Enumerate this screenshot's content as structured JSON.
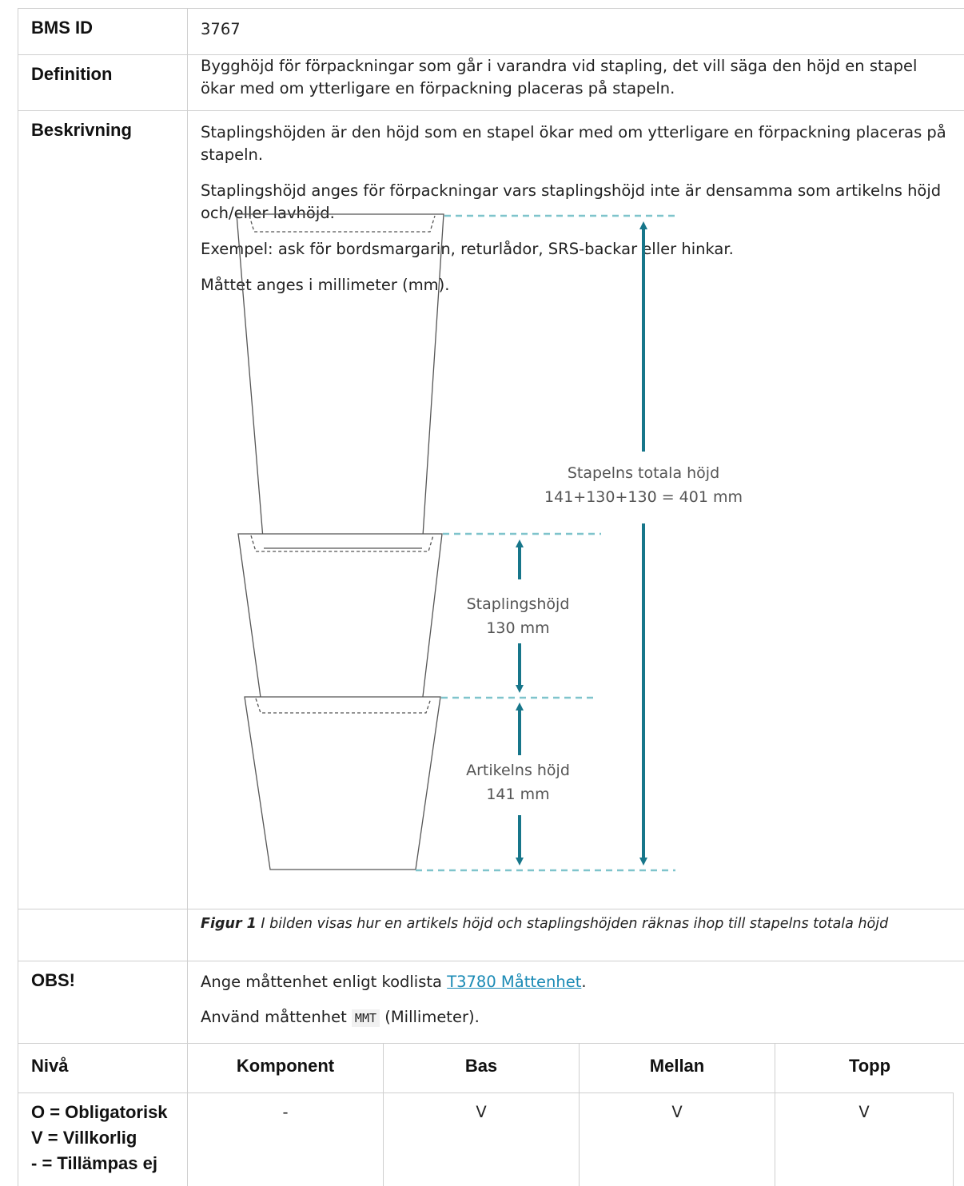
{
  "bms_id": {
    "label": "BMS ID",
    "value": "3767"
  },
  "definition": {
    "label": "Definition",
    "text": "Bygghöjd för förpackningar som går i varandra vid stapling, det vill säga den höjd en stapel ökar med om ytterligare en förpackning placeras på stapeln."
  },
  "description": {
    "label": "Beskrivning",
    "paragraphs": [
      "Staplingshöjden är den höjd som en stapel ökar med om ytterligare en förpackning placeras på stapeln.",
      "Staplingshöjd anges för förpackningar vars staplingshöjd inte är densamma som artikelns höjd och/eller lavhöjd.",
      "Exempel: ask för bordsmargarin, returlådor, SRS-backar eller hinkar.",
      "Måttet anges i millimeter (mm)."
    ]
  },
  "figure": {
    "total_label": "Stapelns totala höjd",
    "total_formula": "141+130+130 = 401 mm",
    "stacking_label": "Staplingshöjd",
    "stacking_value": "130 mm",
    "article_label": "Artikelns höjd",
    "article_value": "141 mm",
    "caption_prefix": "Figur 1",
    "caption_text": " I bilden visas hur en artikels höjd och staplingshöjden räknas ihop till stapelns totala höjd"
  },
  "obs": {
    "label": "OBS!",
    "line1_before": "Ange måttenhet enligt kodlista ",
    "line1_link": "T3780 Måttenhet",
    "line1_after": ".",
    "line2_before": "Använd måttenhet ",
    "line2_code": "MMT",
    "line2_after": " (Millimeter)."
  },
  "levels": {
    "header": [
      "Nivå",
      "Komponent",
      "Bas",
      "Mellan",
      "Topp"
    ],
    "legend": [
      "O = Obligatorisk",
      "V = Villkorlig",
      "- = Tillämpas ej"
    ],
    "values": [
      "-",
      "V",
      "V",
      "V"
    ]
  }
}
